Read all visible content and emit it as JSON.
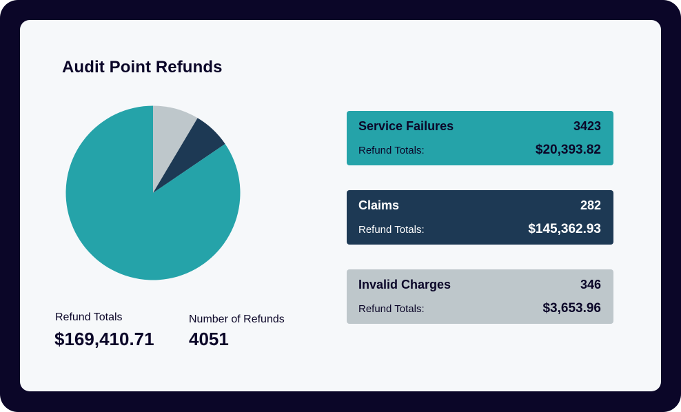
{
  "colors": {
    "frame": "#0b0628",
    "card": "#f6f8fa",
    "text": "#0b0628",
    "teal": "#25a3a9",
    "navy": "#1d3954",
    "gray": "#bec7cb",
    "white": "#ffffff"
  },
  "title": "Audit Point Refunds",
  "summary": {
    "refund_totals_label": "Refund Totals",
    "refund_totals_value": "$169,410.71",
    "number_of_refunds_label": "Number of Refunds",
    "number_of_refunds_value": "4051"
  },
  "categories": [
    {
      "name": "Service Failures",
      "count": "3423",
      "totals_label": "Refund Totals:",
      "total": "$20,393.82",
      "color": "#25a3a9",
      "text_color": "#0b0628"
    },
    {
      "name": "Claims",
      "count": "282",
      "totals_label": "Refund Totals:",
      "total": "$145,362.93",
      "color": "#1d3954",
      "text_color": "#ffffff"
    },
    {
      "name": "Invalid Charges",
      "count": "346",
      "totals_label": "Refund Totals:",
      "total": "$3,653.96",
      "color": "#bec7cb",
      "text_color": "#0b0628"
    }
  ],
  "chart_data": {
    "type": "pie",
    "title": "Audit Point Refunds",
    "categories": [
      "Invalid Charges",
      "Claims",
      "Service Failures"
    ],
    "values": [
      346,
      282,
      3423
    ],
    "colors": [
      "#bec7cb",
      "#1d3954",
      "#25a3a9"
    ],
    "start": "top",
    "direction": "clockwise"
  }
}
